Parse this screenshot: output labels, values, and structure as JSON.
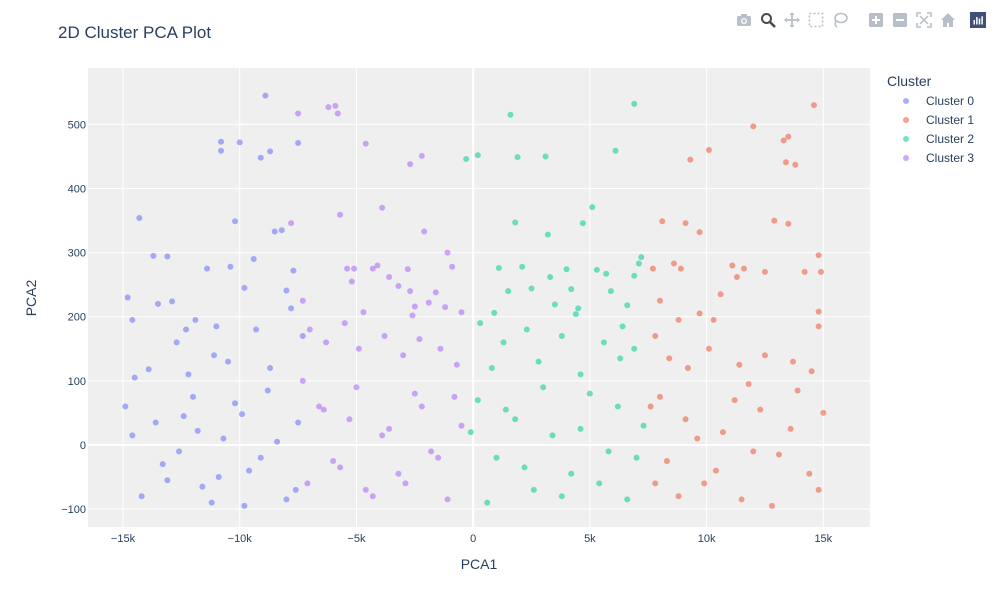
{
  "chart_data": {
    "type": "scatter",
    "title": "2D Cluster PCA Plot",
    "xlabel": "PCA1",
    "ylabel": "PCA2",
    "xlim": [
      -16500,
      17000
    ],
    "ylim": [
      -128,
      588
    ],
    "xticks": [
      -15000,
      -10000,
      -5000,
      0,
      5000,
      10000,
      15000
    ],
    "xtick_labels": [
      "−15k",
      "−10k",
      "−5k",
      "0",
      "5k",
      "10k",
      "15k"
    ],
    "yticks": [
      -100,
      0,
      100,
      200,
      300,
      400,
      500
    ],
    "ytick_labels": [
      "−100",
      "0",
      "100",
      "200",
      "300",
      "400",
      "500"
    ],
    "grid": true,
    "legend": {
      "title": "Cluster",
      "placement": "right"
    },
    "series": [
      {
        "name": "Cluster 0",
        "color": "#636efa",
        "points": [
          [
            -14800,
            230
          ],
          [
            -14600,
            195
          ],
          [
            -14300,
            354
          ],
          [
            -13700,
            295
          ],
          [
            -13500,
            220
          ],
          [
            -13100,
            294
          ],
          [
            -12900,
            224
          ],
          [
            -12300,
            180
          ],
          [
            -11900,
            195
          ],
          [
            -11400,
            275
          ],
          [
            -11000,
            185
          ],
          [
            -10800,
            473
          ],
          [
            -10800,
            459
          ],
          [
            -10400,
            278
          ],
          [
            -10200,
            349
          ],
          [
            -10000,
            472
          ],
          [
            -9800,
            245
          ],
          [
            -9400,
            290
          ],
          [
            -9100,
            448
          ],
          [
            -8900,
            545
          ],
          [
            -8700,
            458
          ],
          [
            -8500,
            333
          ],
          [
            -8200,
            335
          ],
          [
            -8000,
            241
          ],
          [
            -7800,
            213
          ],
          [
            -7700,
            272
          ],
          [
            -7500,
            471
          ],
          [
            -7300,
            170
          ],
          [
            -9300,
            180
          ],
          [
            -12700,
            160
          ],
          [
            -11100,
            140
          ],
          [
            -14500,
            105
          ],
          [
            -13900,
            118
          ],
          [
            -10500,
            130
          ],
          [
            -8700,
            120
          ],
          [
            -12200,
            110
          ],
          [
            -14900,
            60
          ],
          [
            -13600,
            35
          ],
          [
            -12600,
            -10
          ],
          [
            -11800,
            22
          ],
          [
            -10900,
            -50
          ],
          [
            -9900,
            48
          ],
          [
            -9100,
            -20
          ],
          [
            -8400,
            5
          ],
          [
            -7600,
            -70
          ],
          [
            -14200,
            -80
          ],
          [
            -13100,
            -55
          ],
          [
            -12000,
            75
          ],
          [
            -11200,
            -90
          ],
          [
            -10200,
            65
          ],
          [
            -9600,
            -40
          ],
          [
            -8800,
            85
          ],
          [
            -8000,
            -85
          ],
          [
            -7500,
            35
          ],
          [
            -14600,
            15
          ],
          [
            -13300,
            -30
          ],
          [
            -12400,
            45
          ],
          [
            -11600,
            -65
          ],
          [
            -10700,
            10
          ],
          [
            -9800,
            -95
          ]
        ]
      },
      {
        "name": "Cluster 1",
        "color": "#EF553B",
        "points": [
          [
            7700,
            275
          ],
          [
            8000,
            225
          ],
          [
            8100,
            349
          ],
          [
            8600,
            283
          ],
          [
            8900,
            275
          ],
          [
            9100,
            346
          ],
          [
            9300,
            445
          ],
          [
            9700,
            332
          ],
          [
            10100,
            460
          ],
          [
            10600,
            235
          ],
          [
            11100,
            280
          ],
          [
            11300,
            262
          ],
          [
            12000,
            497
          ],
          [
            12500,
            270
          ],
          [
            13300,
            475
          ],
          [
            13500,
            481
          ],
          [
            13500,
            345
          ],
          [
            13400,
            441
          ],
          [
            13800,
            437
          ],
          [
            14200,
            270
          ],
          [
            14600,
            530
          ],
          [
            14800,
            296
          ],
          [
            14900,
            270
          ],
          [
            14800,
            208
          ],
          [
            14800,
            185
          ],
          [
            12900,
            350
          ],
          [
            11600,
            275
          ],
          [
            10300,
            195
          ],
          [
            9700,
            205
          ],
          [
            8800,
            195
          ],
          [
            7800,
            170
          ],
          [
            8400,
            135
          ],
          [
            9200,
            120
          ],
          [
            10100,
            150
          ],
          [
            11400,
            125
          ],
          [
            12500,
            140
          ],
          [
            13700,
            130
          ],
          [
            14500,
            115
          ],
          [
            7600,
            60
          ],
          [
            8300,
            -25
          ],
          [
            9100,
            40
          ],
          [
            9900,
            -60
          ],
          [
            10700,
            20
          ],
          [
            11500,
            -85
          ],
          [
            12300,
            55
          ],
          [
            13100,
            -15
          ],
          [
            13900,
            85
          ],
          [
            14800,
            -70
          ],
          [
            8000,
            75
          ],
          [
            8800,
            -80
          ],
          [
            9600,
            10
          ],
          [
            10400,
            -40
          ],
          [
            11200,
            70
          ],
          [
            12000,
            -10
          ],
          [
            12800,
            -95
          ],
          [
            13600,
            25
          ],
          [
            14400,
            -45
          ],
          [
            15000,
            50
          ],
          [
            7800,
            -60
          ],
          [
            11800,
            95
          ]
        ]
      },
      {
        "name": "Cluster 2",
        "color": "#00cc96",
        "points": [
          [
            -300,
            446
          ],
          [
            200,
            452
          ],
          [
            900,
            206
          ],
          [
            1100,
            276
          ],
          [
            1500,
            240
          ],
          [
            1600,
            515
          ],
          [
            1800,
            347
          ],
          [
            1900,
            449
          ],
          [
            2100,
            278
          ],
          [
            2500,
            244
          ],
          [
            3100,
            450
          ],
          [
            3200,
            328
          ],
          [
            3300,
            262
          ],
          [
            3500,
            219
          ],
          [
            4000,
            274
          ],
          [
            4200,
            243
          ],
          [
            4400,
            204
          ],
          [
            4500,
            213
          ],
          [
            4700,
            346
          ],
          [
            5100,
            371
          ],
          [
            5300,
            273
          ],
          [
            5700,
            267
          ],
          [
            5900,
            240
          ],
          [
            6100,
            459
          ],
          [
            6400,
            185
          ],
          [
            6600,
            218
          ],
          [
            6900,
            264
          ],
          [
            6900,
            532
          ],
          [
            7100,
            283
          ],
          [
            7200,
            293
          ],
          [
            300,
            190
          ],
          [
            1300,
            160
          ],
          [
            2300,
            180
          ],
          [
            3800,
            170
          ],
          [
            5600,
            160
          ],
          [
            6900,
            150
          ],
          [
            800,
            120
          ],
          [
            2800,
            130
          ],
          [
            4600,
            110
          ],
          [
            6300,
            135
          ],
          [
            200,
            70
          ],
          [
            1000,
            -20
          ],
          [
            1800,
            40
          ],
          [
            2600,
            -70
          ],
          [
            3400,
            15
          ],
          [
            4200,
            -45
          ],
          [
            5000,
            80
          ],
          [
            5800,
            -10
          ],
          [
            6600,
            -85
          ],
          [
            7300,
            30
          ],
          [
            600,
            -90
          ],
          [
            1400,
            55
          ],
          [
            2200,
            -35
          ],
          [
            3000,
            90
          ],
          [
            3800,
            -80
          ],
          [
            4600,
            25
          ],
          [
            5400,
            -60
          ],
          [
            6200,
            60
          ],
          [
            7000,
            -20
          ],
          [
            -100,
            20
          ]
        ]
      },
      {
        "name": "Cluster 3",
        "color": "#ab63fa",
        "points": [
          [
            -7500,
            517
          ],
          [
            -7800,
            346
          ],
          [
            -7300,
            225
          ],
          [
            -6200,
            527
          ],
          [
            -5900,
            529
          ],
          [
            -5800,
            517
          ],
          [
            -5700,
            359
          ],
          [
            -5400,
            275
          ],
          [
            -5200,
            255
          ],
          [
            -5100,
            275
          ],
          [
            -4700,
            207
          ],
          [
            -4600,
            470
          ],
          [
            -4300,
            275
          ],
          [
            -4100,
            280
          ],
          [
            -3900,
            370
          ],
          [
            -3600,
            262
          ],
          [
            -3200,
            248
          ],
          [
            -2800,
            274
          ],
          [
            -2700,
            240
          ],
          [
            -2700,
            438
          ],
          [
            -2600,
            202
          ],
          [
            -2500,
            216
          ],
          [
            -2200,
            451
          ],
          [
            -2100,
            333
          ],
          [
            -1900,
            222
          ],
          [
            -1600,
            238
          ],
          [
            -1200,
            215
          ],
          [
            -1100,
            300
          ],
          [
            -900,
            278
          ],
          [
            -500,
            207
          ],
          [
            -7000,
            180
          ],
          [
            -6300,
            160
          ],
          [
            -5500,
            190
          ],
          [
            -4900,
            150
          ],
          [
            -3800,
            170
          ],
          [
            -3000,
            140
          ],
          [
            -2300,
            165
          ],
          [
            -1400,
            150
          ],
          [
            -700,
            125
          ],
          [
            -7300,
            100
          ],
          [
            -6600,
            60
          ],
          [
            -6000,
            -25
          ],
          [
            -5300,
            40
          ],
          [
            -4600,
            -70
          ],
          [
            -3900,
            15
          ],
          [
            -3200,
            -45
          ],
          [
            -2500,
            80
          ],
          [
            -1800,
            -10
          ],
          [
            -1100,
            -85
          ],
          [
            -500,
            30
          ],
          [
            -7100,
            -60
          ],
          [
            -6400,
            55
          ],
          [
            -5700,
            -35
          ],
          [
            -5000,
            90
          ],
          [
            -4300,
            -80
          ],
          [
            -3600,
            25
          ],
          [
            -2900,
            -60
          ],
          [
            -2200,
            60
          ],
          [
            -1500,
            -20
          ],
          [
            -800,
            75
          ]
        ]
      }
    ]
  },
  "toolbar": {
    "items": [
      "camera-icon",
      "zoom-icon",
      "pan-icon",
      "box-select-icon",
      "lasso-icon",
      "zoom-in-icon",
      "zoom-out-icon",
      "autoscale-icon",
      "reset-home-icon",
      "plotly-logo"
    ]
  }
}
